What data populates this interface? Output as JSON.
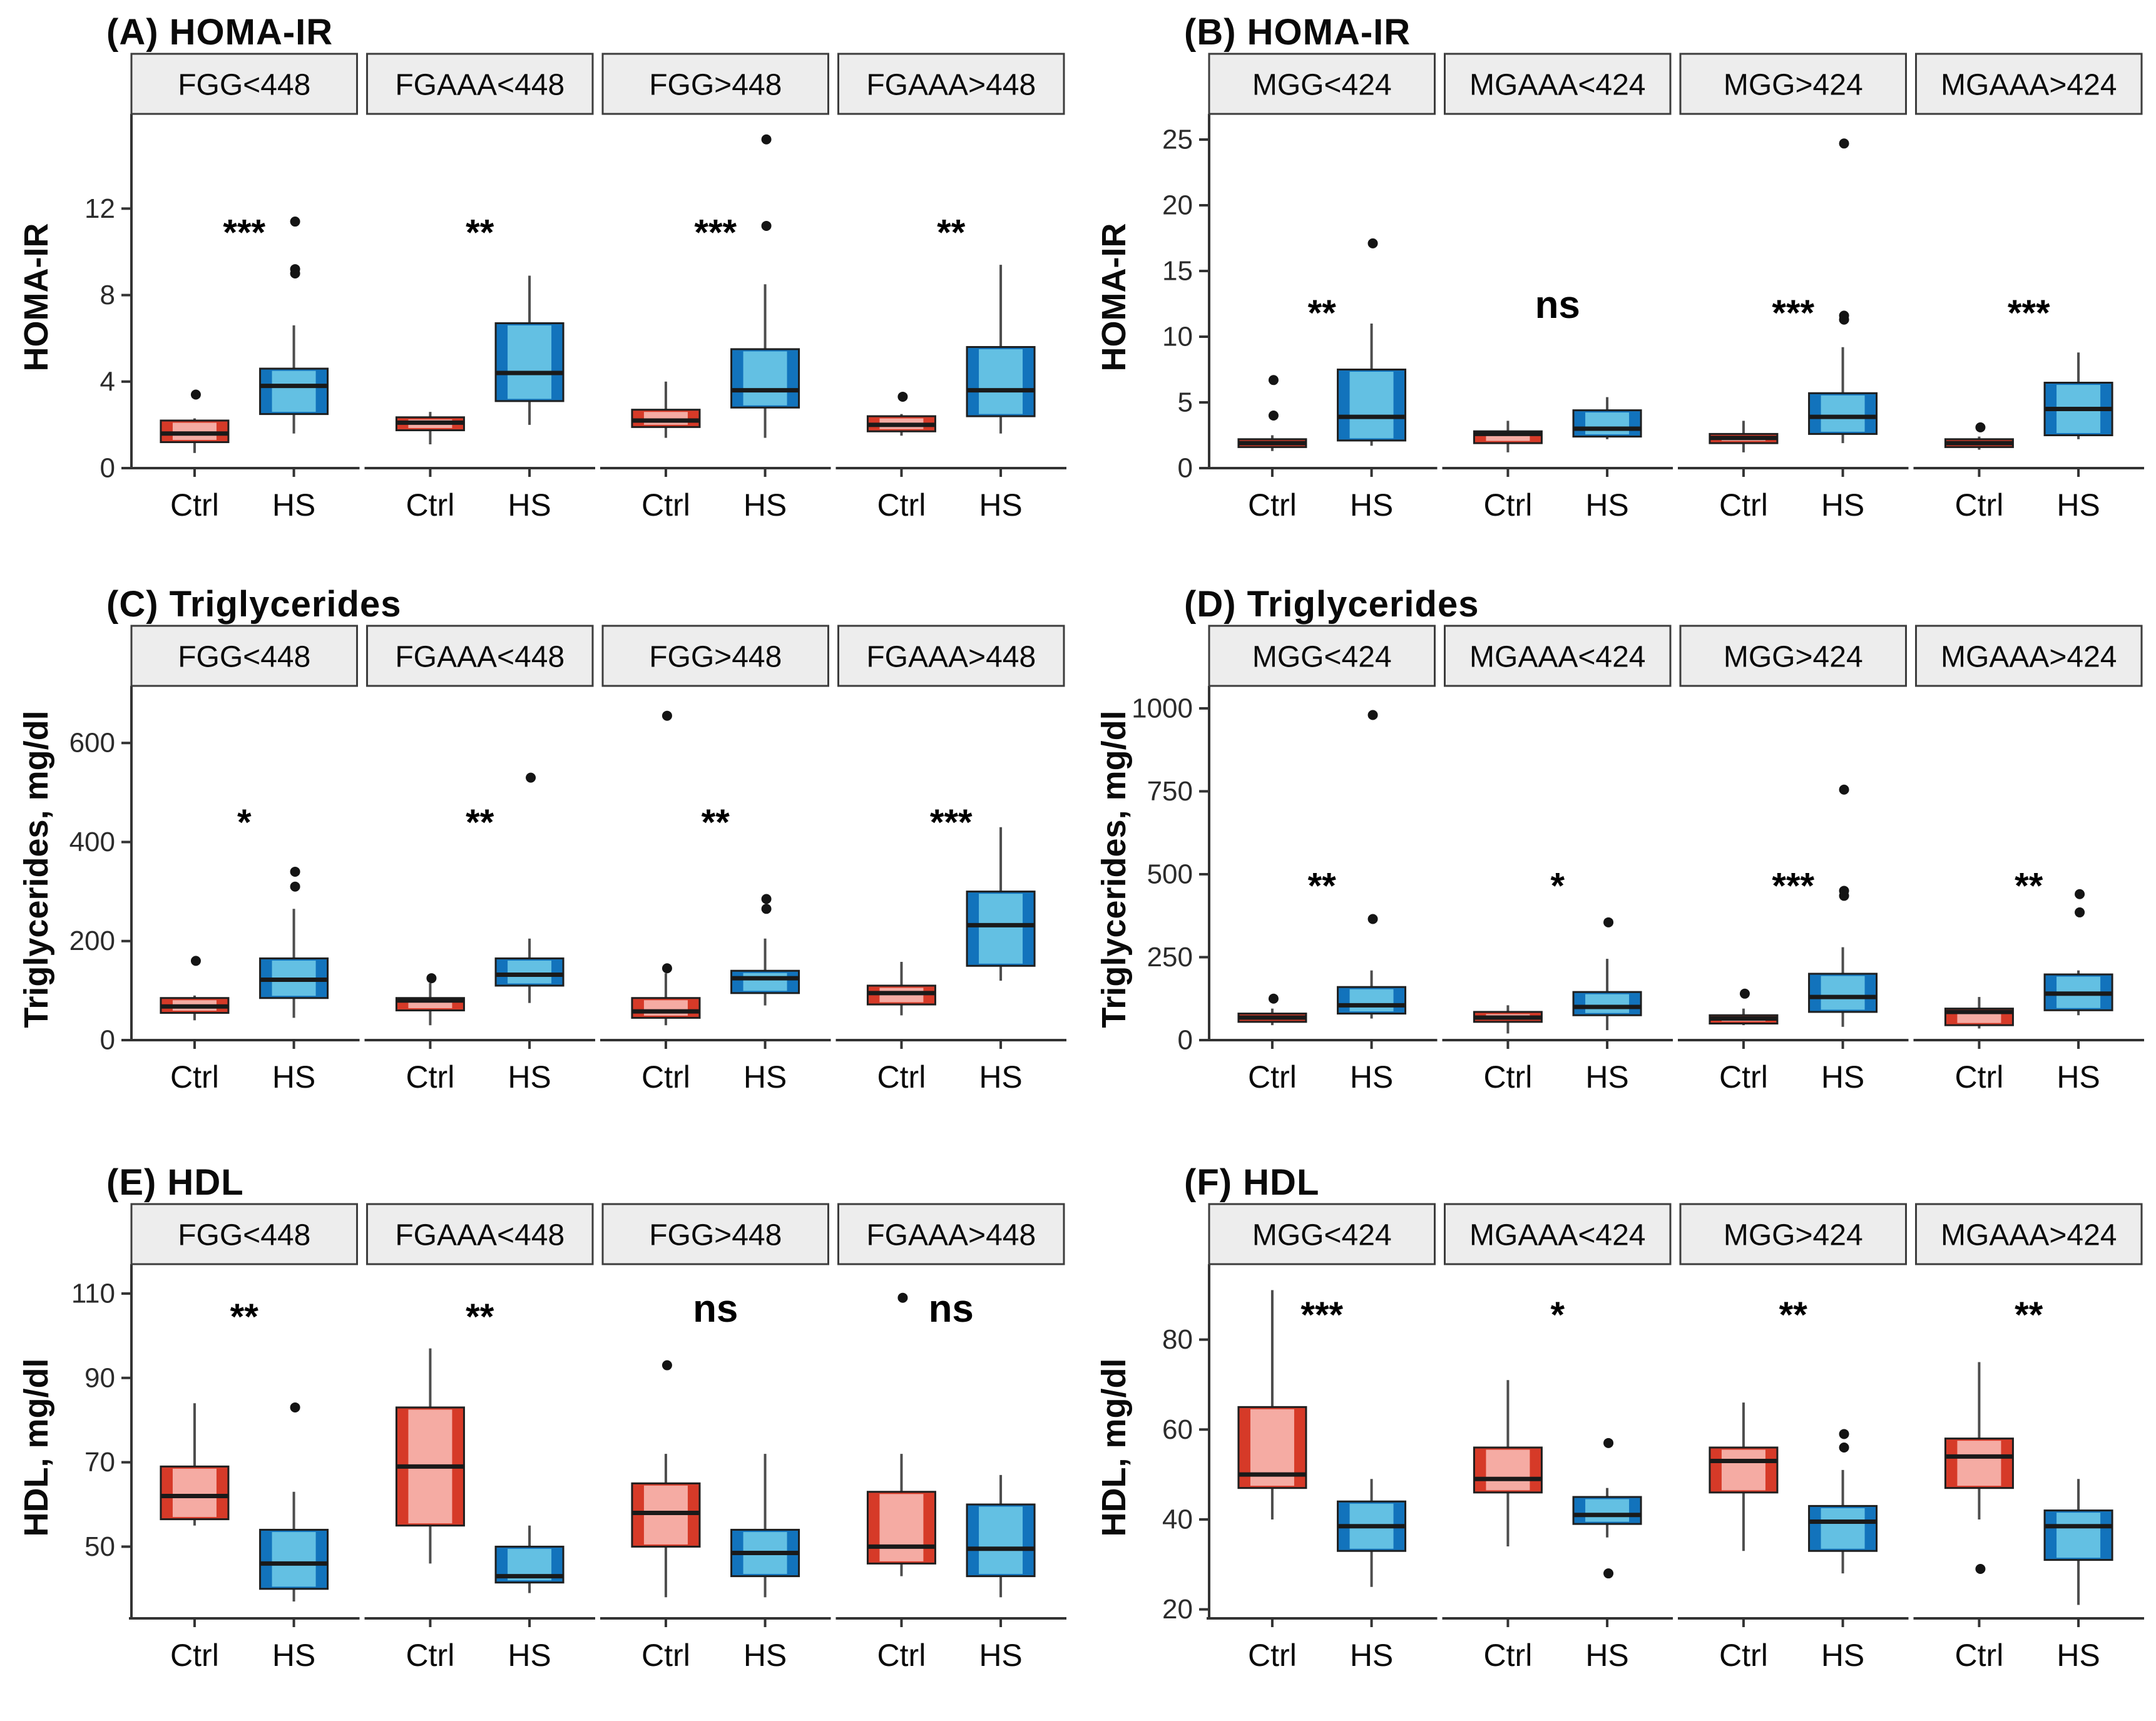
{
  "page": {
    "background": "#ffffff"
  },
  "colors": {
    "ctrl_fill": "#F5ABA3",
    "ctrl_edge": "#D63A28",
    "hs_fill": "#63C0E3",
    "hs_edge": "#1273BC",
    "median": "#1a1a1a",
    "whisker": "#4d4d4d",
    "outlier": "#141414",
    "axis": "#333333",
    "strip_fill": "#EDEDED",
    "strip_border": "#3d3d3d",
    "tick_text": "#2b2b2b",
    "label_text": "#0a0a0a",
    "sig_text": "#000000"
  },
  "chart_data": [
    {
      "id": "A",
      "type": "boxplot",
      "title": "(A) HOMA-IR",
      "ylabel": "HOMA-IR",
      "ylim": [
        0,
        15.8
      ],
      "yticks": [
        0,
        4,
        8,
        12
      ],
      "sig_y": 10.9,
      "group_labels": [
        "Ctrl",
        "HS"
      ],
      "facets": [
        {
          "label": "FGG<448",
          "sig": "***",
          "groups": [
            {
              "label": "Ctrl",
              "role": "ctrl",
              "lo": 0.7,
              "q1": 1.2,
              "med": 1.6,
              "q3": 2.2,
              "hi": 2.3,
              "out": [
                3.4
              ]
            },
            {
              "label": "HS",
              "role": "hs",
              "lo": 1.6,
              "q1": 2.5,
              "med": 3.8,
              "q3": 4.6,
              "hi": 6.6,
              "out": [
                9.0,
                9.2,
                11.4
              ]
            }
          ]
        },
        {
          "label": "FGAAA<448",
          "sig": "**",
          "groups": [
            {
              "label": "Ctrl",
              "role": "ctrl",
              "lo": 1.1,
              "q1": 1.75,
              "med": 2.1,
              "q3": 2.35,
              "hi": 2.6,
              "out": []
            },
            {
              "label": "HS",
              "role": "hs",
              "lo": 2.0,
              "q1": 3.1,
              "med": 4.4,
              "q3": 6.7,
              "hi": 8.9,
              "out": []
            }
          ]
        },
        {
          "label": "FGG>448",
          "sig": "***",
          "groups": [
            {
              "label": "Ctrl",
              "role": "ctrl",
              "lo": 1.4,
              "q1": 1.9,
              "med": 2.2,
              "q3": 2.7,
              "hi": 4.0,
              "out": []
            },
            {
              "label": "HS",
              "role": "hs",
              "lo": 1.4,
              "q1": 2.8,
              "med": 3.6,
              "q3": 5.5,
              "hi": 8.5,
              "out": [
                11.2,
                15.2
              ]
            }
          ]
        },
        {
          "label": "FGAAA>448",
          "sig": "**",
          "groups": [
            {
              "label": "Ctrl",
              "role": "ctrl",
              "lo": 1.5,
              "q1": 1.7,
              "med": 2.0,
              "q3": 2.4,
              "hi": 2.5,
              "out": [
                3.3
              ]
            },
            {
              "label": "HS",
              "role": "hs",
              "lo": 1.6,
              "q1": 2.4,
              "med": 3.6,
              "q3": 5.6,
              "hi": 9.4,
              "out": []
            }
          ]
        }
      ]
    },
    {
      "id": "B",
      "type": "boxplot",
      "title": "(B) HOMA-IR",
      "ylabel": "HOMA-IR",
      "ylim": [
        0,
        26
      ],
      "yticks": [
        0,
        5,
        10,
        15,
        20,
        25
      ],
      "sig_y": 11.8,
      "group_labels": [
        "Ctrl",
        "HS"
      ],
      "facets": [
        {
          "label": "MGG<424",
          "sig": "**",
          "groups": [
            {
              "label": "Ctrl",
              "role": "ctrl",
              "lo": 1.3,
              "q1": 1.6,
              "med": 1.9,
              "q3": 2.2,
              "hi": 2.5,
              "out": [
                4.0,
                6.7
              ]
            },
            {
              "label": "HS",
              "role": "hs",
              "lo": 1.7,
              "q1": 2.1,
              "med": 3.9,
              "q3": 7.5,
              "hi": 11.0,
              "out": [
                17.1
              ]
            }
          ]
        },
        {
          "label": "MGAAA<424",
          "sig": "ns",
          "groups": [
            {
              "label": "Ctrl",
              "role": "ctrl",
              "lo": 1.2,
              "q1": 1.9,
              "med": 2.6,
              "q3": 2.8,
              "hi": 3.6,
              "out": []
            },
            {
              "label": "HS",
              "role": "hs",
              "lo": 2.2,
              "q1": 2.4,
              "med": 3.0,
              "q3": 4.4,
              "hi": 5.4,
              "out": []
            }
          ]
        },
        {
          "label": "MGG>424",
          "sig": "***",
          "groups": [
            {
              "label": "Ctrl",
              "role": "ctrl",
              "lo": 1.2,
              "q1": 1.9,
              "med": 2.3,
              "q3": 2.6,
              "hi": 3.6,
              "out": []
            },
            {
              "label": "HS",
              "role": "hs",
              "lo": 1.9,
              "q1": 2.6,
              "med": 3.9,
              "q3": 5.7,
              "hi": 9.2,
              "out": [
                11.3,
                11.6,
                24.7
              ]
            }
          ]
        },
        {
          "label": "MGAAA>424",
          "sig": "***",
          "groups": [
            {
              "label": "Ctrl",
              "role": "ctrl",
              "lo": 1.4,
              "q1": 1.6,
              "med": 1.9,
              "q3": 2.2,
              "hi": 2.4,
              "out": [
                3.1
              ]
            },
            {
              "label": "HS",
              "role": "hs",
              "lo": 2.2,
              "q1": 2.5,
              "med": 4.5,
              "q3": 6.5,
              "hi": 8.8,
              "out": []
            }
          ]
        }
      ]
    },
    {
      "id": "C",
      "type": "boxplot",
      "title": "(C) Triglycerides",
      "ylabel": "Triglycerides, mg/dl",
      "ylim": [
        0,
        690
      ],
      "yticks": [
        0,
        200,
        400,
        600
      ],
      "sig_y": 440,
      "group_labels": [
        "Ctrl",
        "HS"
      ],
      "facets": [
        {
          "label": "FGG<448",
          "sig": "*",
          "groups": [
            {
              "label": "Ctrl",
              "role": "ctrl",
              "lo": 40,
              "q1": 55,
              "med": 68,
              "q3": 85,
              "hi": 90,
              "out": [
                160
              ]
            },
            {
              "label": "HS",
              "role": "hs",
              "lo": 45,
              "q1": 85,
              "med": 122,
              "q3": 165,
              "hi": 265,
              "out": [
                310,
                340
              ]
            }
          ]
        },
        {
          "label": "FGAAA<448",
          "sig": "**",
          "groups": [
            {
              "label": "Ctrl",
              "role": "ctrl",
              "lo": 30,
              "q1": 60,
              "med": 80,
              "q3": 85,
              "hi": 115,
              "out": [
                125
              ]
            },
            {
              "label": "HS",
              "role": "hs",
              "lo": 75,
              "q1": 110,
              "med": 132,
              "q3": 165,
              "hi": 205,
              "out": [
                530
              ]
            }
          ]
        },
        {
          "label": "FGG>448",
          "sig": "**",
          "groups": [
            {
              "label": "Ctrl",
              "role": "ctrl",
              "lo": 30,
              "q1": 45,
              "med": 58,
              "q3": 85,
              "hi": 135,
              "out": [
                145,
                655
              ]
            },
            {
              "label": "HS",
              "role": "hs",
              "lo": 70,
              "q1": 95,
              "med": 125,
              "q3": 140,
              "hi": 205,
              "out": [
                265,
                285
              ]
            }
          ]
        },
        {
          "label": "FGAAA>448",
          "sig": "***",
          "groups": [
            {
              "label": "Ctrl",
              "role": "ctrl",
              "lo": 50,
              "q1": 72,
              "med": 95,
              "q3": 110,
              "hi": 158,
              "out": []
            },
            {
              "label": "HS",
              "role": "hs",
              "lo": 120,
              "q1": 150,
              "med": 232,
              "q3": 300,
              "hi": 430,
              "out": []
            }
          ]
        }
      ]
    },
    {
      "id": "D",
      "type": "boxplot",
      "title": "(D) Triglycerides",
      "ylabel": "Triglycerides, mg/dl",
      "ylim": [
        0,
        1030
      ],
      "yticks": [
        0,
        250,
        500,
        750,
        1000
      ],
      "sig_y": 465,
      "group_labels": [
        "Ctrl",
        "HS"
      ],
      "facets": [
        {
          "label": "MGG<424",
          "sig": "**",
          "groups": [
            {
              "label": "Ctrl",
              "role": "ctrl",
              "lo": 45,
              "q1": 55,
              "med": 68,
              "q3": 80,
              "hi": 95,
              "out": [
                125
              ]
            },
            {
              "label": "HS",
              "role": "hs",
              "lo": 65,
              "q1": 80,
              "med": 105,
              "q3": 160,
              "hi": 210,
              "out": [
                365,
                980
              ]
            }
          ]
        },
        {
          "label": "MGAAA<424",
          "sig": "*",
          "groups": [
            {
              "label": "Ctrl",
              "role": "ctrl",
              "lo": 20,
              "q1": 55,
              "med": 68,
              "q3": 85,
              "hi": 105,
              "out": []
            },
            {
              "label": "HS",
              "role": "hs",
              "lo": 30,
              "q1": 75,
              "med": 100,
              "q3": 145,
              "hi": 245,
              "out": [
                355
              ]
            }
          ]
        },
        {
          "label": "MGG>424",
          "sig": "***",
          "groups": [
            {
              "label": "Ctrl",
              "role": "ctrl",
              "lo": 45,
              "q1": 50,
              "med": 65,
              "q3": 75,
              "hi": 95,
              "out": [
                140
              ]
            },
            {
              "label": "HS",
              "role": "hs",
              "lo": 40,
              "q1": 85,
              "med": 130,
              "q3": 200,
              "hi": 280,
              "out": [
                435,
                450,
                755
              ]
            }
          ]
        },
        {
          "label": "MGAAA>424",
          "sig": "**",
          "groups": [
            {
              "label": "Ctrl",
              "role": "ctrl",
              "lo": 35,
              "q1": 45,
              "med": 85,
              "q3": 95,
              "hi": 130,
              "out": []
            },
            {
              "label": "HS",
              "role": "hs",
              "lo": 75,
              "q1": 90,
              "med": 140,
              "q3": 198,
              "hi": 210,
              "out": [
                385,
                440
              ]
            }
          ]
        }
      ]
    },
    {
      "id": "E",
      "type": "boxplot",
      "title": "(E) HDL",
      "ylabel": "HDL, mg/dl",
      "ylim": [
        33,
        114
      ],
      "yticks": [
        50,
        70,
        90,
        110
      ],
      "sig_y": 104.5,
      "group_labels": [
        "Ctrl",
        "HS"
      ],
      "facets": [
        {
          "label": "FGG<448",
          "sig": "**",
          "groups": [
            {
              "label": "Ctrl",
              "role": "ctrl",
              "lo": 55,
              "q1": 56.5,
              "med": 62,
              "q3": 69,
              "hi": 84,
              "out": []
            },
            {
              "label": "HS",
              "role": "hs",
              "lo": 37,
              "q1": 40,
              "med": 46,
              "q3": 54,
              "hi": 63,
              "out": [
                83
              ]
            }
          ]
        },
        {
          "label": "FGAAA<448",
          "sig": "**",
          "groups": [
            {
              "label": "Ctrl",
              "role": "ctrl",
              "lo": 46,
              "q1": 55,
              "med": 69,
              "q3": 83,
              "hi": 97,
              "out": []
            },
            {
              "label": "HS",
              "role": "hs",
              "lo": 39,
              "q1": 41.5,
              "med": 43,
              "q3": 50,
              "hi": 55,
              "out": []
            }
          ]
        },
        {
          "label": "FGG>448",
          "sig": "ns",
          "groups": [
            {
              "label": "Ctrl",
              "role": "ctrl",
              "lo": 38,
              "q1": 50,
              "med": 58,
              "q3": 65,
              "hi": 72,
              "out": [
                93
              ]
            },
            {
              "label": "HS",
              "role": "hs",
              "lo": 38,
              "q1": 43,
              "med": 48.5,
              "q3": 54,
              "hi": 72,
              "out": []
            }
          ]
        },
        {
          "label": "FGAAA>448",
          "sig": "ns",
          "groups": [
            {
              "label": "Ctrl",
              "role": "ctrl",
              "lo": 43,
              "q1": 46,
              "med": 50,
              "q3": 63,
              "hi": 72,
              "out": [
                109
              ]
            },
            {
              "label": "HS",
              "role": "hs",
              "lo": 38,
              "q1": 43,
              "med": 49.5,
              "q3": 60,
              "hi": 67,
              "out": []
            }
          ]
        }
      ]
    },
    {
      "id": "F",
      "type": "boxplot",
      "title": "(F) HDL",
      "ylabel": "HDL, mg/dl",
      "ylim": [
        18,
        94
      ],
      "yticks": [
        20,
        40,
        60,
        80
      ],
      "sig_y": 85.5,
      "group_labels": [
        "Ctrl",
        "HS"
      ],
      "facets": [
        {
          "label": "MGG<424",
          "sig": "***",
          "groups": [
            {
              "label": "Ctrl",
              "role": "ctrl",
              "lo": 40,
              "q1": 47,
              "med": 50,
              "q3": 65,
              "hi": 91,
              "out": []
            },
            {
              "label": "HS",
              "role": "hs",
              "lo": 25,
              "q1": 33,
              "med": 38.5,
              "q3": 44,
              "hi": 49,
              "out": []
            }
          ]
        },
        {
          "label": "MGAAA<424",
          "sig": "*",
          "groups": [
            {
              "label": "Ctrl",
              "role": "ctrl",
              "lo": 34,
              "q1": 46,
              "med": 49,
              "q3": 56,
              "hi": 71,
              "out": []
            },
            {
              "label": "HS",
              "role": "hs",
              "lo": 36,
              "q1": 39,
              "med": 41,
              "q3": 45,
              "hi": 47,
              "out": [
                57,
                28
              ]
            }
          ]
        },
        {
          "label": "MGG>424",
          "sig": "**",
          "groups": [
            {
              "label": "Ctrl",
              "role": "ctrl",
              "lo": 33,
              "q1": 46,
              "med": 53,
              "q3": 56,
              "hi": 66,
              "out": []
            },
            {
              "label": "HS",
              "role": "hs",
              "lo": 28,
              "q1": 33,
              "med": 39.5,
              "q3": 43,
              "hi": 51,
              "out": [
                59,
                56
              ]
            }
          ]
        },
        {
          "label": "MGAAA>424",
          "sig": "**",
          "groups": [
            {
              "label": "Ctrl",
              "role": "ctrl",
              "lo": 40,
              "q1": 47,
              "med": 54,
              "q3": 58,
              "hi": 75,
              "out": [
                29
              ]
            },
            {
              "label": "HS",
              "role": "hs",
              "lo": 21,
              "q1": 31,
              "med": 38.5,
              "q3": 42,
              "hi": 49,
              "out": []
            }
          ]
        }
      ]
    }
  ]
}
